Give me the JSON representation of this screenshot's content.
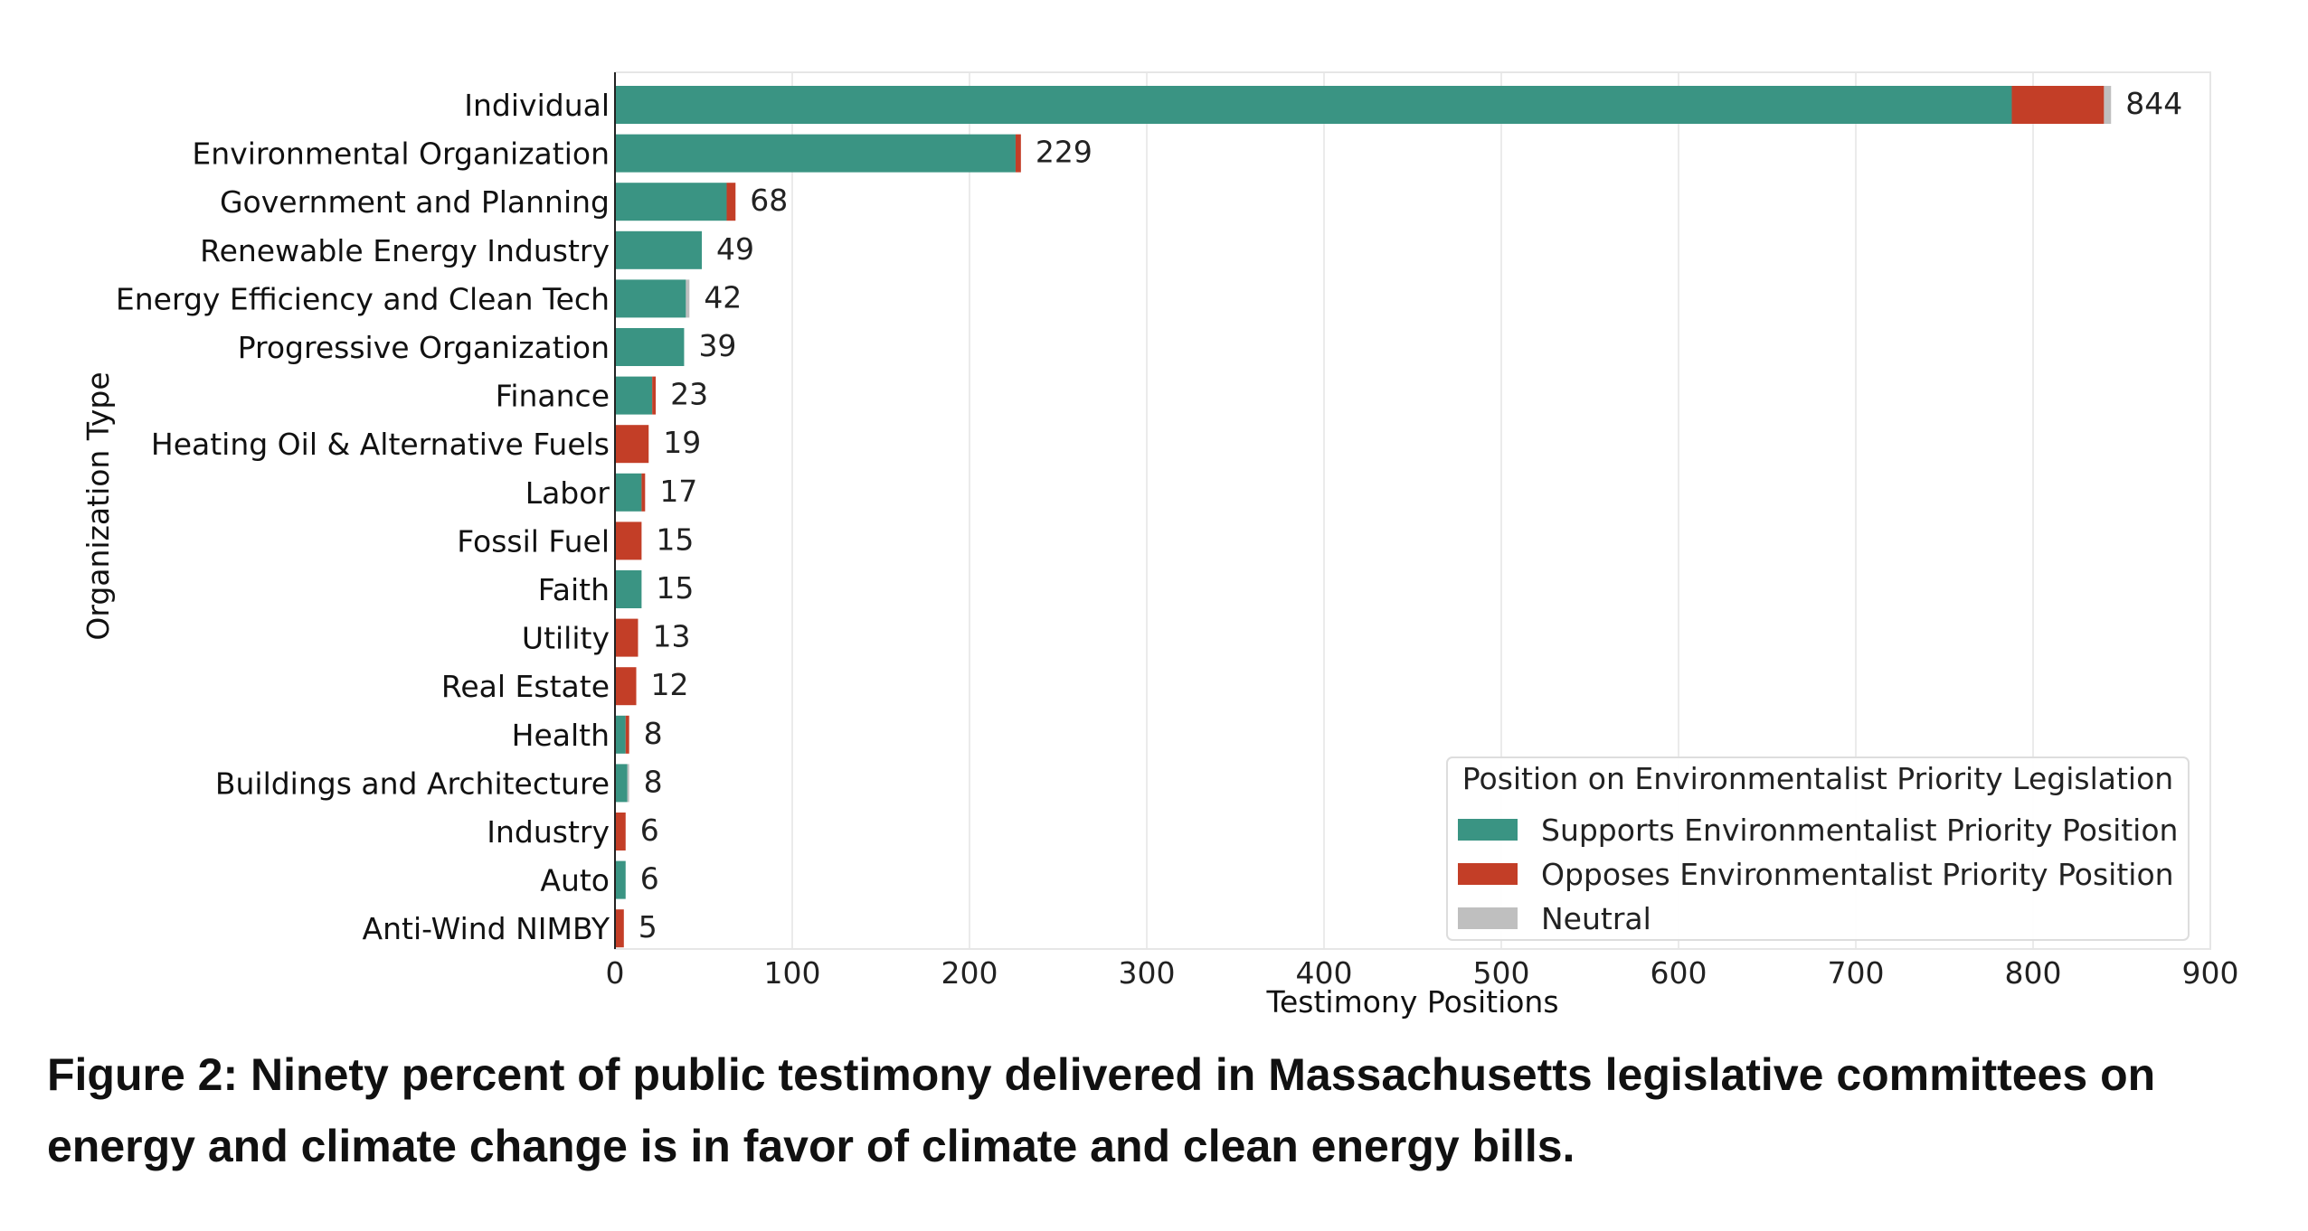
{
  "caption": "Figure 2: Ninety percent of public testimony delivered in Massachusetts legislative committees on energy and climate change is in favor of climate and clean energy bills.",
  "chart_data": {
    "type": "bar",
    "orientation": "horizontal",
    "stacked": true,
    "title": "",
    "xlabel": "Testimony Positions",
    "ylabel": "Organization Type",
    "xlim": [
      0,
      900
    ],
    "xticks": [
      0,
      100,
      200,
      300,
      400,
      500,
      600,
      700,
      800,
      900
    ],
    "grid": "vertical",
    "legend_position": "bottom-right",
    "legend_title": "Position on Environmentalist Priority Legislation",
    "categories": [
      "Individual",
      "Environmental Organization",
      "Government and Planning",
      "Renewable Energy Industry",
      "Energy Efficiency and Clean Tech",
      "Progressive Organization",
      "Finance",
      "Heating Oil & Alternative Fuels",
      "Labor",
      "Fossil Fuel",
      "Faith",
      "Utility",
      "Real Estate",
      "Health",
      "Buildings and Architecture",
      "Industry",
      "Auto",
      "Anti-Wind NIMBY"
    ],
    "series": [
      {
        "name": "Supports Environmentalist Priority Position",
        "color": "#3a9483",
        "values": [
          788,
          226,
          63,
          49,
          40,
          39,
          21,
          0,
          15,
          0,
          15,
          0,
          0,
          6,
          7,
          0,
          6,
          0
        ]
      },
      {
        "name": "Opposes Environmentalist Priority Position",
        "color": "#c33e27",
        "values": [
          52,
          3,
          5,
          0,
          0,
          0,
          2,
          19,
          2,
          15,
          0,
          13,
          12,
          2,
          0,
          6,
          0,
          5
        ]
      },
      {
        "name": "Neutral",
        "color": "#bfbfbf",
        "values": [
          4,
          0,
          0,
          0,
          2,
          0,
          0,
          0,
          0,
          0,
          0,
          0,
          0,
          0,
          1,
          0,
          0,
          0
        ]
      }
    ],
    "totals": [
      844,
      229,
      68,
      49,
      42,
      39,
      23,
      19,
      17,
      15,
      15,
      13,
      12,
      8,
      8,
      6,
      6,
      5
    ]
  }
}
